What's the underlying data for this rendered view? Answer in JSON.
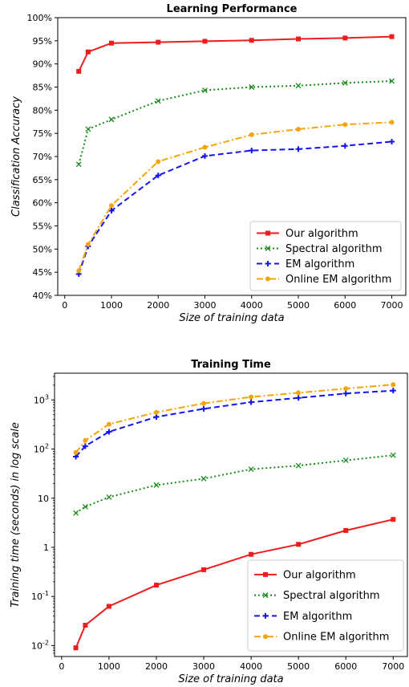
{
  "chart_data": [
    {
      "type": "line",
      "title": "Learning Performance",
      "xlabel": "Size of training data",
      "ylabel": "Classification Accuracy",
      "xlim": [
        -150,
        7300
      ],
      "ylim": [
        40,
        100
      ],
      "x_ticks": [
        0,
        1000,
        2000,
        3000,
        4000,
        5000,
        6000,
        7000
      ],
      "x_tick_labels": [
        "0",
        "1000",
        "2000",
        "3000",
        "4000",
        "5000",
        "6000",
        "7000"
      ],
      "y_ticks": [
        40,
        45,
        50,
        55,
        60,
        65,
        70,
        75,
        80,
        85,
        90,
        95,
        100
      ],
      "y_tick_labels": [
        "40%",
        "45%",
        "50%",
        "55%",
        "60%",
        "65%",
        "70%",
        "75%",
        "80%",
        "85%",
        "90%",
        "95%",
        "100%"
      ],
      "grid": false,
      "legend_position": "lower-right",
      "x": [
        300,
        500,
        1000,
        2000,
        3000,
        4000,
        5000,
        6000,
        7000
      ],
      "series": [
        {
          "name": "Our algorithm",
          "color": "#ee1c1c",
          "style": "solid",
          "marker": "square",
          "values": [
            88.4,
            92.6,
            94.5,
            94.7,
            94.9,
            95.1,
            95.4,
            95.6,
            95.9
          ]
        },
        {
          "name": "Spectral algorithm",
          "color": "#1a8c1a",
          "style": "dotted",
          "marker": "x",
          "values": [
            68.3,
            75.9,
            78.0,
            82.0,
            84.3,
            85.0,
            85.3,
            85.9,
            86.3
          ]
        },
        {
          "name": "EM algorithm",
          "color": "#1414ee",
          "style": "dashed",
          "marker": "plus",
          "values": [
            44.6,
            50.6,
            58.3,
            65.9,
            70.1,
            71.3,
            71.6,
            72.3,
            73.2
          ]
        },
        {
          "name": "Online EM algorithm",
          "color": "#f5a40a",
          "style": "dashdot",
          "marker": "circle",
          "values": [
            45.3,
            51.0,
            59.4,
            68.9,
            72.0,
            74.7,
            75.9,
            76.9,
            77.4
          ]
        }
      ]
    },
    {
      "type": "line",
      "title": "Training Time",
      "xlabel": "Size of training data",
      "ylabel": "Training time (seconds) in log scale",
      "log_y": true,
      "xlim": [
        -150,
        7300
      ],
      "ylim": [
        0.006,
        3500
      ],
      "x_ticks": [
        0,
        1000,
        2000,
        3000,
        4000,
        5000,
        6000,
        7000
      ],
      "x_tick_labels": [
        "0",
        "1000",
        "2000",
        "3000",
        "4000",
        "5000",
        "6000",
        "7000"
      ],
      "y_ticks": [
        0.01,
        0.1,
        1,
        10,
        100,
        1000
      ],
      "y_tick_labels": [
        [
          "10",
          "-2"
        ],
        [
          "10",
          "-1"
        ],
        [
          "1",
          ""
        ],
        [
          "10",
          ""
        ],
        [
          "10",
          "2"
        ],
        [
          "10",
          "3"
        ]
      ],
      "grid": false,
      "legend_position": "lower-right",
      "x": [
        300,
        500,
        1000,
        2000,
        3000,
        4000,
        5000,
        6000,
        7000
      ],
      "series": [
        {
          "name": "Our algorithm",
          "color": "#ee1c1c",
          "style": "solid",
          "marker": "square",
          "values": [
            0.009,
            0.026,
            0.063,
            0.17,
            0.35,
            0.72,
            1.15,
            2.2,
            3.7
          ]
        },
        {
          "name": "Spectral algorithm",
          "color": "#1a8c1a",
          "style": "dotted",
          "marker": "x",
          "values": [
            5,
            6.7,
            10.5,
            18.5,
            25,
            39,
            46,
            59,
            75
          ]
        },
        {
          "name": "EM algorithm",
          "color": "#1414ee",
          "style": "dashed",
          "marker": "plus",
          "values": [
            70,
            115,
            225,
            450,
            660,
            900,
            1100,
            1350,
            1550
          ]
        },
        {
          "name": "Online EM algorithm",
          "color": "#f5a40a",
          "style": "dashdot",
          "marker": "circle",
          "values": [
            85,
            150,
            320,
            560,
            850,
            1150,
            1400,
            1700,
            2050
          ]
        }
      ]
    }
  ]
}
